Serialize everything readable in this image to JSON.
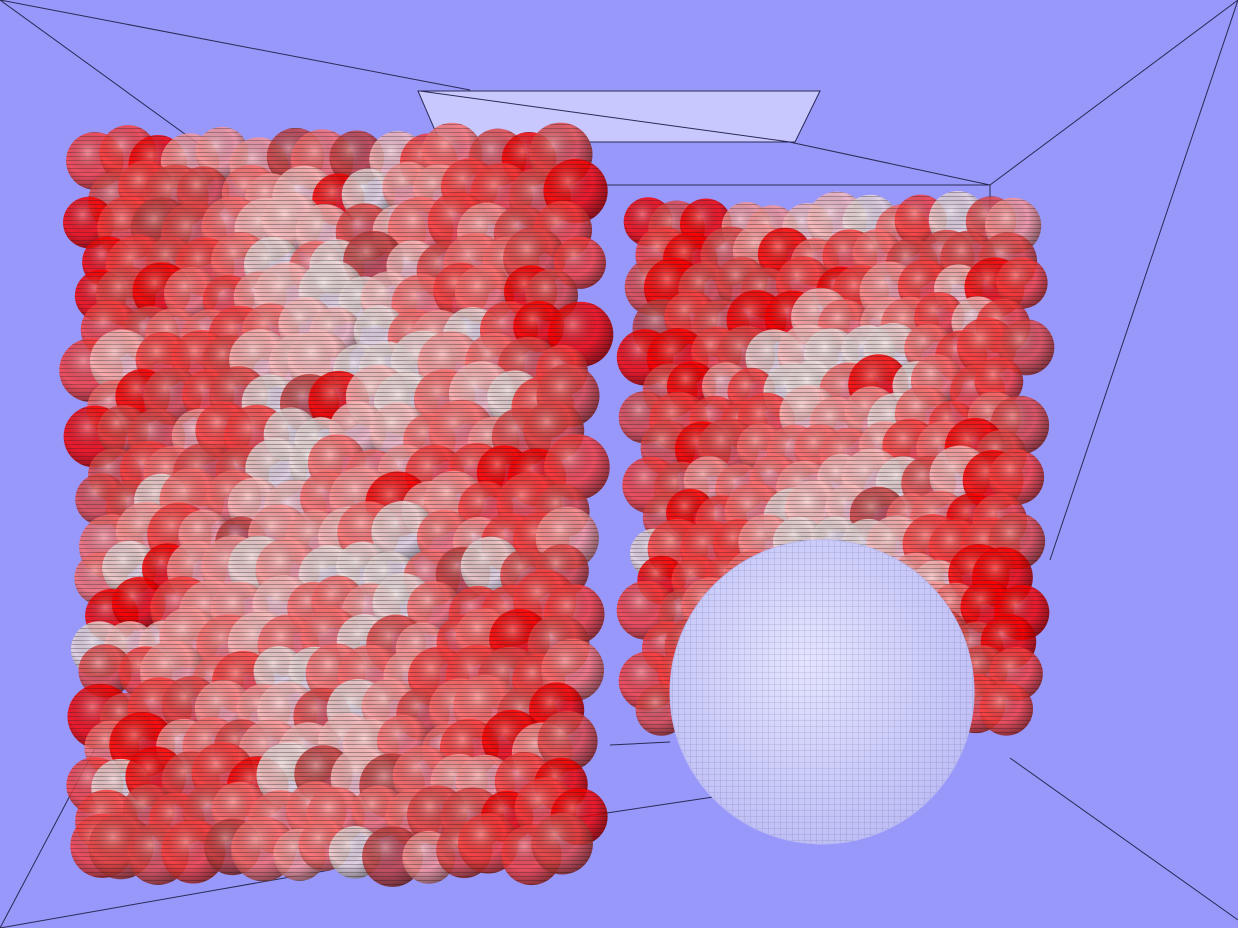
{
  "scene": {
    "background_color": "#9898fb",
    "room_line_color": "#2a2a55",
    "ceiling_light_color": "#c8c8ff",
    "sphere_color": "#c9c9ff",
    "mesh_color": "#3a3a3a",
    "particle_palette": [
      "#ff0000",
      "#ff4040",
      "#e84848",
      "#ff7070",
      "#ff9a9a",
      "#ffc0c0",
      "#f0dede",
      "#c84040"
    ],
    "objects": [
      {
        "name": "left-particle-cluster",
        "shape": "cylinder",
        "color": "red"
      },
      {
        "name": "right-particle-cluster",
        "shape": "cylinder",
        "color": "red"
      },
      {
        "name": "wireframe-sphere",
        "shape": "sphere",
        "color": "lavender"
      },
      {
        "name": "ceiling-light-panel",
        "shape": "quad",
        "color": "light lavender"
      }
    ]
  }
}
